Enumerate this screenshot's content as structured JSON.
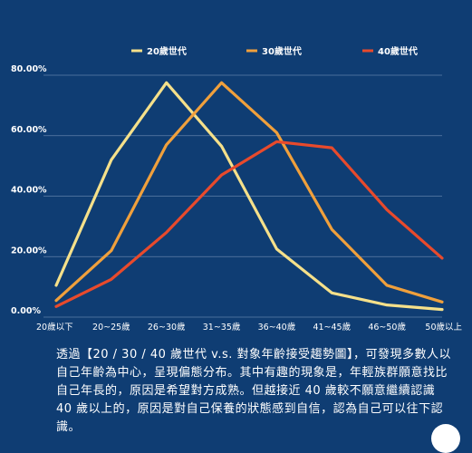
{
  "chart_data": {
    "type": "line",
    "categories": [
      "20歲以下",
      "20~25歲",
      "26~30歲",
      "31~35歲",
      "36~40歲",
      "41~45歲",
      "46~50歲",
      "50歲以上"
    ],
    "y_ticks": [
      "0.00%",
      "20.00%",
      "40.00%",
      "60.00%",
      "80.00%"
    ],
    "ylim": [
      0,
      80
    ],
    "grid": true,
    "legend_position": "top",
    "series": [
      {
        "name": "20歲世代",
        "color": "#f5e08a",
        "values": [
          10.5,
          52,
          77.5,
          56.5,
          22.5,
          8,
          4,
          2.5
        ]
      },
      {
        "name": "30歲世代",
        "color": "#f0a03c",
        "values": [
          5.5,
          22,
          57,
          77.5,
          61,
          29,
          10.5,
          5
        ]
      },
      {
        "name": "40歲世代",
        "color": "#e84a2c",
        "values": [
          3.5,
          12.5,
          28,
          47,
          58,
          56,
          35.5,
          19.5
        ]
      }
    ]
  },
  "caption": "透過【20 / 30 / 40 歲世代 v.s. 對象年齡接受趨勢圖】，可發現多數人以自己年齡為中心，呈現偏態分布。其中有趣的現象是，年輕族群願意找比自己年長的，原因是希望對方成熟。但越接近 40 歲較不願意繼續認識 40 歲以上的，原因是對自己保養的狀態感到自信，認為自己可以往下認識。"
}
